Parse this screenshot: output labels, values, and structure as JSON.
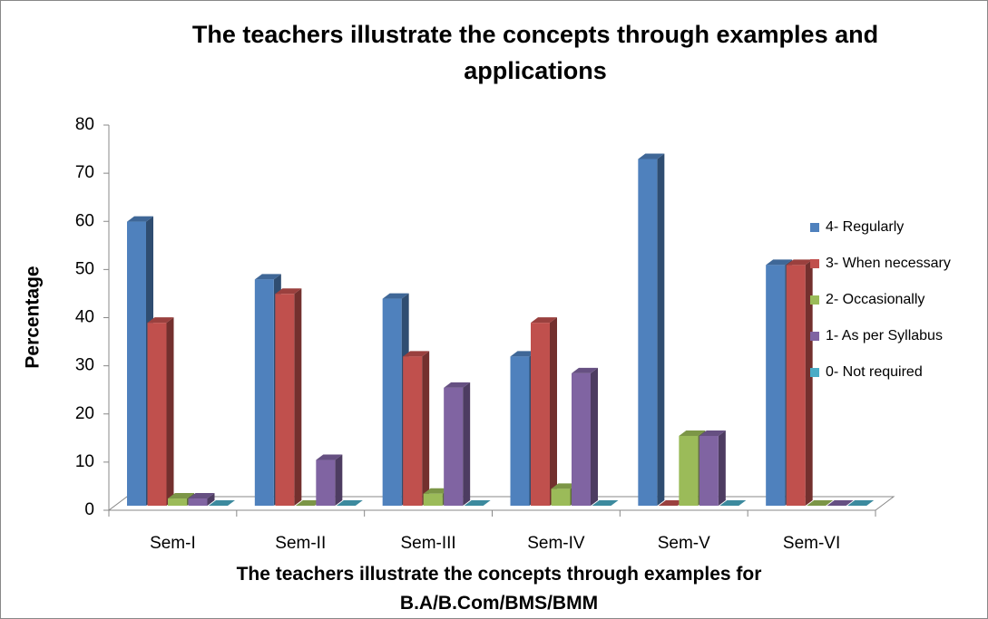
{
  "chart_data": {
    "type": "bar3d",
    "title": "The teachers illustrate the concepts through examples and applications",
    "x_label": "The teachers illustrate the concepts through examples for B.A/B.Com/BMS/BMM",
    "y_label": "Percentage",
    "categories": [
      "Sem-I",
      "Sem-II",
      "Sem-III",
      "Sem-IV",
      "Sem-V",
      "Sem-VI"
    ],
    "series": [
      {
        "name": "4- Regularly",
        "color": "#4f81bd",
        "values": [
          59,
          47,
          43,
          31,
          72,
          50
        ]
      },
      {
        "name": "3- When necessary",
        "color": "#c0504d",
        "values": [
          38,
          44,
          31,
          38,
          0,
          50
        ]
      },
      {
        "name": "2- Occasionally",
        "color": "#9bbb59",
        "values": [
          1.5,
          0,
          2.5,
          3.5,
          14.5,
          0
        ]
      },
      {
        "name": "1- As per Syllabus",
        "color": "#8064a2",
        "values": [
          1.5,
          9.5,
          24.5,
          27.5,
          14.5,
          0
        ]
      },
      {
        "name": "0- Not required",
        "color": "#4bacc6",
        "values": [
          0,
          0,
          0,
          0,
          0,
          0
        ]
      }
    ],
    "ylim": [
      0,
      80
    ],
    "yticks": [
      0,
      10,
      20,
      30,
      40,
      50,
      60,
      70,
      80
    ],
    "legend": "right"
  }
}
